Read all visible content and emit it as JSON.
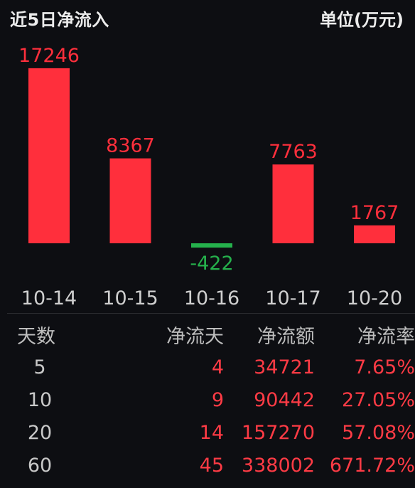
{
  "header": {
    "title": "近5日净流入",
    "unit": "单位(万元)"
  },
  "colors": {
    "positive": "#ff2f3c",
    "negative": "#25b14c",
    "background": "#0d0e12",
    "axis_text": "#cfcfcf"
  },
  "chart_data": {
    "type": "bar",
    "title": "近5日净流入",
    "ylabel": "单位(万元)",
    "categories": [
      "10-14",
      "10-15",
      "10-16",
      "10-17",
      "10-20"
    ],
    "values": [
      17246,
      8367,
      -422,
      7763,
      1767
    ],
    "data_labels": [
      "17246",
      "8367",
      "-422",
      "7763",
      "1767"
    ],
    "grid": false,
    "legend": "none"
  },
  "table": {
    "headers": [
      "天数",
      "净流天",
      "净流额",
      "净流率"
    ],
    "rows": [
      [
        "5",
        "4",
        "34721",
        "7.65%"
      ],
      [
        "10",
        "9",
        "90442",
        "27.05%"
      ],
      [
        "20",
        "14",
        "157270",
        "57.08%"
      ],
      [
        "60",
        "45",
        "338002",
        "671.72%"
      ]
    ]
  }
}
